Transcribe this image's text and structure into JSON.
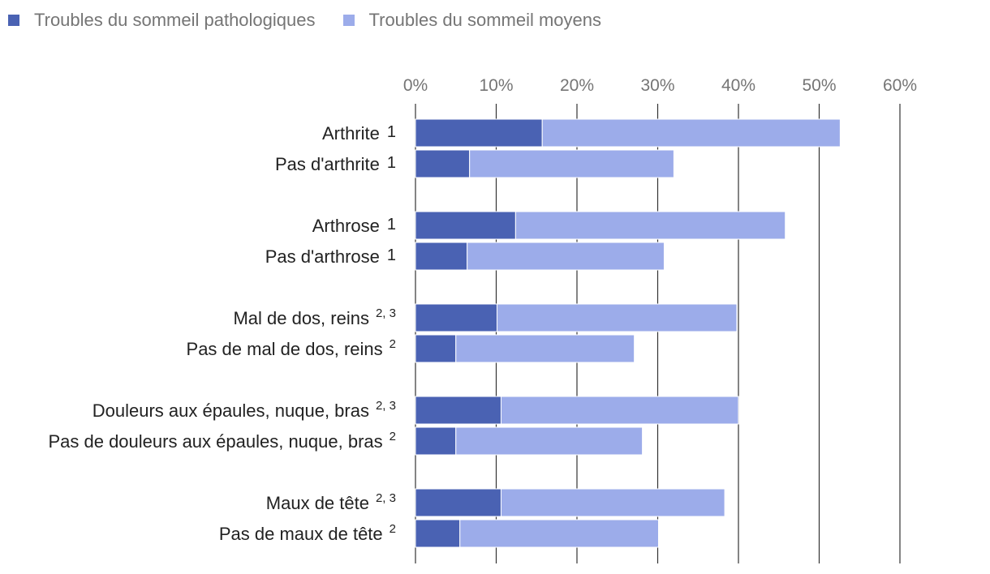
{
  "chart_data": {
    "type": "bar",
    "orientation": "horizontal",
    "stacked": true,
    "title": "",
    "xlabel": "",
    "ylabel": "",
    "xlim": [
      0,
      60
    ],
    "xticks": [
      "0%",
      "10%",
      "20%",
      "30%",
      "40%",
      "50%",
      "60%"
    ],
    "grid": true,
    "legend_position": "top-left",
    "categories": [
      {
        "label": "Arthrite",
        "sup": "1",
        "unicode_sup": true
      },
      {
        "label": "Pas d'arthrite",
        "sup": "1",
        "unicode_sup": true
      },
      {
        "label": "Arthrose",
        "sup": "1",
        "unicode_sup": true
      },
      {
        "label": "Pas d'arthrose",
        "sup": "1",
        "unicode_sup": true
      },
      {
        "label": "Mal de dos, reins",
        "sup": "2, 3"
      },
      {
        "label": "Pas de mal de dos, reins",
        "sup": "2"
      },
      {
        "label": "Douleurs aux épaules, nuque, bras",
        "sup": "2, 3"
      },
      {
        "label": "Pas de douleurs aux épaules, nuque, bras",
        "sup": "2"
      },
      {
        "label": "Maux de tête",
        "sup": "2, 3"
      },
      {
        "label": "Pas de maux de tête",
        "sup": "2"
      }
    ],
    "series": [
      {
        "name": "Troubles du sommeil pathologiques",
        "color": "#4a62b3",
        "values": [
          15.7,
          6.7,
          12.4,
          6.4,
          10.1,
          5.0,
          10.6,
          5.0,
          10.6,
          5.5
        ]
      },
      {
        "name": "Troubles du sommeil moyens",
        "color": "#9cacea",
        "values": [
          36.9,
          25.3,
          33.4,
          24.4,
          29.7,
          22.1,
          29.4,
          23.1,
          27.7,
          24.6
        ]
      }
    ]
  }
}
